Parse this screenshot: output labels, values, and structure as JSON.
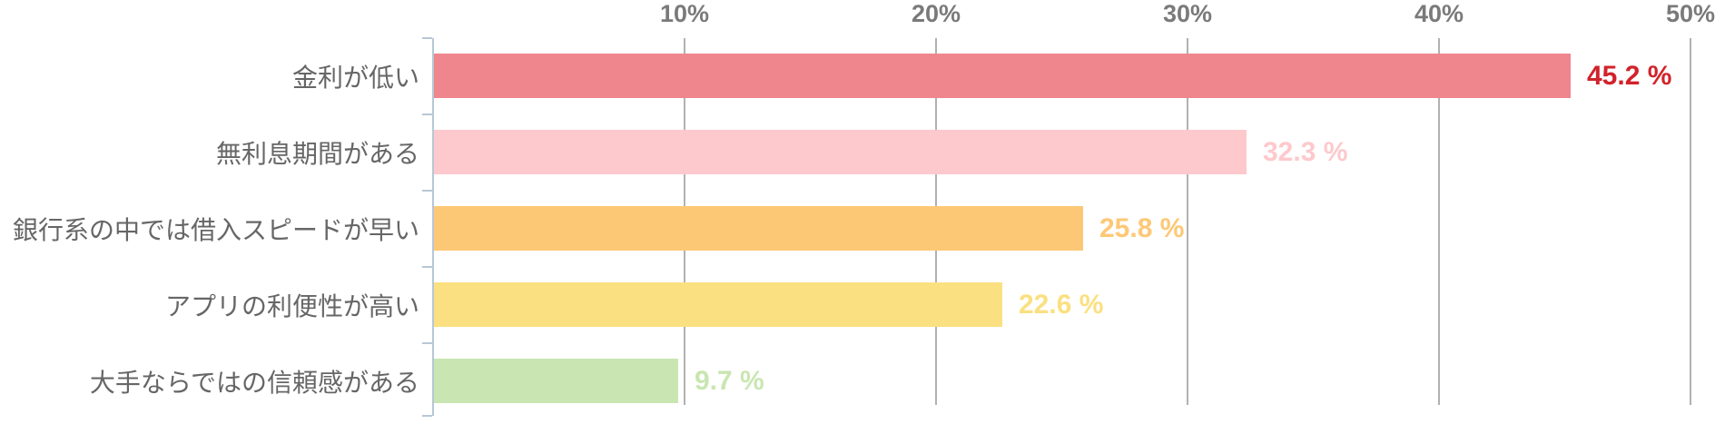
{
  "chart_data": {
    "type": "bar",
    "orientation": "horizontal",
    "title": "",
    "categories": [
      "金利が低い",
      "無利息期間がある",
      "銀行系の中では借入スピードが早い",
      "アプリの利便性が高い",
      "大手ならではの信頼感がある"
    ],
    "values": [
      45.2,
      32.3,
      25.8,
      22.6,
      9.7
    ],
    "value_labels": [
      "45.2 %",
      "32.3 %",
      "25.8 %",
      "22.6 %",
      "9.7 %"
    ],
    "bar_colors": [
      "#ef868d",
      "#fdc9cc",
      "#fdc876",
      "#fae081",
      "#c9e6b2"
    ],
    "value_label_colors": [
      "#d1232b",
      "#fdc9cc",
      "#fdc876",
      "#fae081",
      "#c9e6b2"
    ],
    "x_axis": {
      "position": "top",
      "tick_labels": [
        "10%",
        "20%",
        "30%",
        "40%",
        "50%"
      ],
      "tick_values": [
        10,
        20,
        30,
        40,
        50
      ],
      "range": [
        0,
        49
      ],
      "grid": true
    },
    "styles": {
      "background": "#ffffff",
      "axis_line_color": "#b7c7d7",
      "gridline_color": "#b1b1b1",
      "category_label_color": "#666666",
      "tick_label_color": "#7a7a7a"
    }
  }
}
